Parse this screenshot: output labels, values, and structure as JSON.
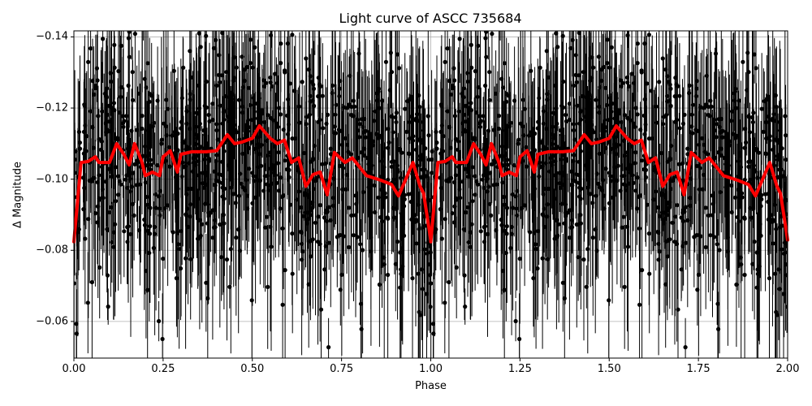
{
  "chart_data": {
    "type": "scatter",
    "title": "Light curve of ASCC 735684",
    "xlabel": "Phase",
    "ylabel": "Δ Magnitude",
    "xlim": [
      0.0,
      2.0
    ],
    "ylim": [
      -0.0497,
      -0.1417
    ],
    "y_inverted": true,
    "grid": true,
    "x_ticks": [
      {
        "value": 0.0,
        "label": "0.00"
      },
      {
        "value": 0.25,
        "label": "0.25"
      },
      {
        "value": 0.5,
        "label": "0.50"
      },
      {
        "value": 0.75,
        "label": "0.75"
      },
      {
        "value": 1.0,
        "label": "1.00"
      },
      {
        "value": 1.25,
        "label": "1.25"
      },
      {
        "value": 1.5,
        "label": "1.50"
      },
      {
        "value": 1.75,
        "label": "1.75"
      },
      {
        "value": 2.0,
        "label": "2.00"
      }
    ],
    "y_ticks": [
      {
        "value": -0.14,
        "label": "−0.14"
      },
      {
        "value": -0.12,
        "label": "−0.12"
      },
      {
        "value": -0.1,
        "label": "−0.10"
      },
      {
        "value": -0.08,
        "label": "−0.08"
      },
      {
        "value": -0.06,
        "label": "−0.06"
      }
    ],
    "series": [
      {
        "name": "observations",
        "kind": "errorbar-scatter",
        "color": "#000000",
        "note": "dense phase-folded photometry with error bars, repeated over two cycles; scatter roughly ±0.03 around the trend",
        "approx_count_per_cycle": 900,
        "scatter_sigma": 0.016,
        "errorbar_halfwidth_range": [
          0.005,
          0.03
        ]
      },
      {
        "name": "binned trend",
        "kind": "line",
        "color": "#ff0000",
        "line_width": 4,
        "phase": [
          0.0,
          0.02,
          0.04,
          0.06,
          0.07,
          0.1,
          0.12,
          0.14,
          0.155,
          0.17,
          0.19,
          0.2,
          0.22,
          0.24,
          0.25,
          0.27,
          0.29,
          0.3,
          0.33,
          0.37,
          0.4,
          0.43,
          0.45,
          0.47,
          0.5,
          0.52,
          0.55,
          0.57,
          0.59,
          0.61,
          0.63,
          0.65,
          0.67,
          0.69,
          0.71,
          0.73,
          0.76,
          0.78,
          0.82,
          0.86,
          0.89,
          0.91,
          0.95,
          0.97,
          0.98,
          1.0
        ],
        "values": [
          -0.0824,
          -0.1047,
          -0.105,
          -0.1063,
          -0.1047,
          -0.1047,
          -0.11,
          -0.107,
          -0.104,
          -0.11,
          -0.105,
          -0.101,
          -0.102,
          -0.101,
          -0.1063,
          -0.108,
          -0.102,
          -0.107,
          -0.1077,
          -0.1077,
          -0.108,
          -0.1125,
          -0.11,
          -0.1104,
          -0.1115,
          -0.115,
          -0.1115,
          -0.11,
          -0.111,
          -0.1047,
          -0.106,
          -0.098,
          -0.1013,
          -0.102,
          -0.0956,
          -0.1075,
          -0.1047,
          -0.106,
          -0.101,
          -0.0997,
          -0.0985,
          -0.0953,
          -0.1047,
          -0.098,
          -0.096,
          -0.0829
        ],
        "repeats_every": 1.0
      }
    ]
  },
  "colors": {
    "points": "#000000",
    "trend": "#ff0000",
    "grid": "#b0b0b0",
    "axes": "#000000"
  }
}
